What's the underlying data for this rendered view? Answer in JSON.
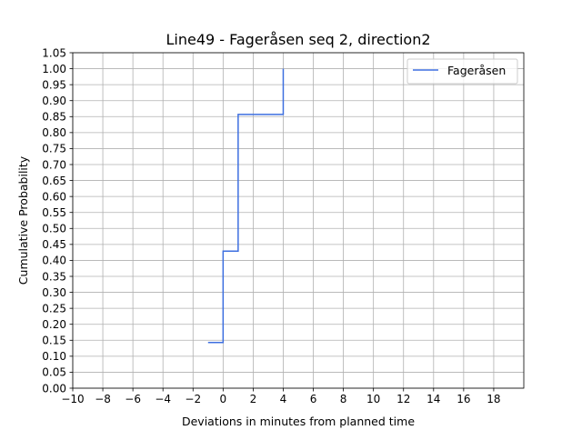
{
  "chart_data": {
    "type": "line",
    "step": "post",
    "title": "Line49 - Fageråsen seq 2, direction2",
    "xlabel": "Deviations in minutes from planned time",
    "ylabel": "Cumulative Probability",
    "xlim": [
      -10,
      20
    ],
    "ylim": [
      0,
      1.05
    ],
    "xticks": [
      -10,
      -8,
      -6,
      -4,
      -2,
      0,
      2,
      4,
      6,
      8,
      10,
      12,
      14,
      16,
      18
    ],
    "xtick_labels": [
      "−10",
      "−8",
      "−6",
      "−4",
      "−2",
      "0",
      "2",
      "4",
      "6",
      "8",
      "10",
      "12",
      "14",
      "16",
      "18"
    ],
    "yticks": [
      0.0,
      0.05,
      0.1,
      0.15,
      0.2,
      0.25,
      0.3,
      0.35,
      0.4,
      0.45,
      0.5,
      0.55,
      0.6,
      0.65,
      0.7,
      0.75,
      0.8,
      0.85,
      0.9,
      0.95,
      1.0,
      1.05
    ],
    "ytick_labels": [
      "0.00",
      "0.05",
      "0.10",
      "0.15",
      "0.20",
      "0.25",
      "0.30",
      "0.35",
      "0.40",
      "0.45",
      "0.50",
      "0.55",
      "0.60",
      "0.65",
      "0.70",
      "0.75",
      "0.80",
      "0.85",
      "0.90",
      "0.95",
      "1.00",
      "1.05"
    ],
    "grid": true,
    "legend_position": "top-right",
    "series": [
      {
        "name": "Fageråsen",
        "color": "#3d6fe0",
        "x": [
          -1,
          0,
          1,
          4
        ],
        "y": [
          0.143,
          0.429,
          0.857,
          1.0
        ]
      }
    ]
  }
}
